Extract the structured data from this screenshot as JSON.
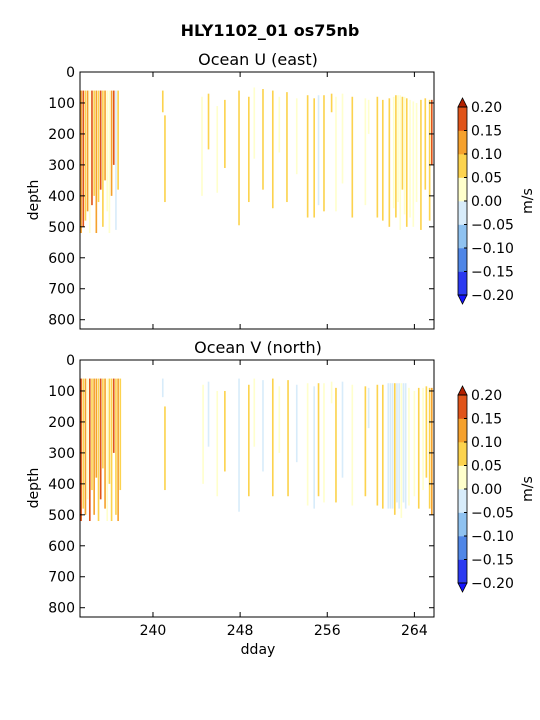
{
  "figure_title": "HLY1102_01 os75nb",
  "colorbar": {
    "label": "m/s",
    "levels": [
      -0.2,
      -0.15,
      -0.1,
      -0.05,
      0.0,
      0.05,
      0.1,
      0.15,
      0.2
    ],
    "tick_labels": [
      "−0.20",
      "−0.15",
      "−0.10",
      "−0.05",
      "0.00",
      "0.05",
      "0.10",
      "0.15",
      "0.20"
    ],
    "colors": [
      "#2b3af0",
      "#4f86e6",
      "#8fc2f0",
      "#d8ecfa",
      "#ffffcc",
      "#fcd34e",
      "#f5a12d",
      "#e0541a"
    ],
    "under_color": "#1414ff",
    "over_color": "#b22000",
    "extend": "both"
  },
  "chart_data": [
    {
      "type": "heatmap",
      "title": "Ocean U (east)",
      "xlabel": "",
      "ylabel": "depth",
      "xlim": [
        233.3,
        265.8
      ],
      "ylim": [
        830,
        0
      ],
      "yticks": [
        0,
        100,
        200,
        300,
        400,
        500,
        600,
        700,
        800
      ],
      "xticks": [
        240,
        248,
        256,
        264
      ],
      "x_tick_labels_shown": false,
      "segments": [
        {
          "x": 233.4,
          "top": 60,
          "bottom": 520,
          "v": 0.14
        },
        {
          "x": 233.6,
          "top": 60,
          "bottom": 500,
          "v": 0.18
        },
        {
          "x": 233.8,
          "top": 60,
          "bottom": 480,
          "v": 0.07
        },
        {
          "x": 234.0,
          "top": 60,
          "bottom": 450,
          "v": 0.12
        },
        {
          "x": 234.2,
          "top": 60,
          "bottom": 520,
          "v": 0.04
        },
        {
          "x": 234.4,
          "top": 60,
          "bottom": 430,
          "v": 0.16
        },
        {
          "x": 234.6,
          "top": 60,
          "bottom": 400,
          "v": 0.08
        },
        {
          "x": 234.8,
          "top": 60,
          "bottom": 520,
          "v": 0.11
        },
        {
          "x": 235.0,
          "top": 60,
          "bottom": 420,
          "v": 0.06
        },
        {
          "x": 235.2,
          "top": 60,
          "bottom": 380,
          "v": 0.19
        },
        {
          "x": 235.4,
          "top": 60,
          "bottom": 500,
          "v": 0.09
        },
        {
          "x": 235.6,
          "top": 60,
          "bottom": 350,
          "v": 0.13
        },
        {
          "x": 235.8,
          "top": 60,
          "bottom": 450,
          "v": 0.05
        },
        {
          "x": 236.0,
          "top": 60,
          "bottom": 520,
          "v": 0.03
        },
        {
          "x": 236.2,
          "top": 60,
          "bottom": 400,
          "v": 0.11
        },
        {
          "x": 236.4,
          "top": 60,
          "bottom": 300,
          "v": 0.17
        },
        {
          "x": 236.6,
          "top": 60,
          "bottom": 510,
          "v": -0.03
        },
        {
          "x": 236.8,
          "top": 60,
          "bottom": 380,
          "v": 0.08
        },
        {
          "x": 240.9,
          "top": 60,
          "bottom": 130,
          "v": 0.07
        },
        {
          "x": 241.1,
          "top": 140,
          "bottom": 420,
          "v": 0.06
        },
        {
          "x": 244.5,
          "top": 80,
          "bottom": 400,
          "v": 0.05
        },
        {
          "x": 245.1,
          "top": 70,
          "bottom": 250,
          "v": 0.07
        },
        {
          "x": 245.9,
          "top": 110,
          "bottom": 390,
          "v": 0.03
        },
        {
          "x": 246.6,
          "top": 90,
          "bottom": 310,
          "v": 0.06
        },
        {
          "x": 247.9,
          "top": 60,
          "bottom": 495,
          "v": 0.08
        },
        {
          "x": 248.8,
          "top": 80,
          "bottom": 420,
          "v": 0.06
        },
        {
          "x": 249.3,
          "top": 50,
          "bottom": 280,
          "v": 0.03
        },
        {
          "x": 250.1,
          "top": 55,
          "bottom": 380,
          "v": 0.07
        },
        {
          "x": 251.0,
          "top": 60,
          "bottom": 440,
          "v": 0.06
        },
        {
          "x": 251.6,
          "top": 80,
          "bottom": 260,
          "v": 0.05
        },
        {
          "x": 252.3,
          "top": 65,
          "bottom": 420,
          "v": 0.08
        },
        {
          "x": 253.2,
          "top": 85,
          "bottom": 330,
          "v": 0.04
        },
        {
          "x": 254.2,
          "top": 75,
          "bottom": 470,
          "v": 0.06
        },
        {
          "x": 254.8,
          "top": 85,
          "bottom": 470,
          "v": 0.07
        },
        {
          "x": 255.2,
          "top": 75,
          "bottom": 430,
          "v": -0.03
        },
        {
          "x": 255.7,
          "top": 75,
          "bottom": 450,
          "v": 0.06
        },
        {
          "x": 256.4,
          "top": 70,
          "bottom": 130,
          "v": 0.07
        },
        {
          "x": 256.8,
          "top": 80,
          "bottom": 450,
          "v": 0.05
        },
        {
          "x": 257.4,
          "top": 70,
          "bottom": 360,
          "v": 0.04
        },
        {
          "x": 258.3,
          "top": 80,
          "bottom": 470,
          "v": 0.06
        },
        {
          "x": 259.5,
          "top": 85,
          "bottom": 430,
          "v": 0.05
        },
        {
          "x": 259.8,
          "top": 90,
          "bottom": 200,
          "v": 0.04
        },
        {
          "x": 260.6,
          "top": 80,
          "bottom": 470,
          "v": 0.07
        },
        {
          "x": 261.1,
          "top": 90,
          "bottom": 480,
          "v": 0.06
        },
        {
          "x": 261.7,
          "top": 85,
          "bottom": 500,
          "v": 0.08
        },
        {
          "x": 262.1,
          "top": 80,
          "bottom": 440,
          "v": 0.04
        },
        {
          "x": 262.3,
          "top": 75,
          "bottom": 470,
          "v": 0.06
        },
        {
          "x": 262.5,
          "top": 75,
          "bottom": 420,
          "v": 0.03
        },
        {
          "x": 262.7,
          "top": 75,
          "bottom": 510,
          "v": 0.05
        },
        {
          "x": 262.9,
          "top": 80,
          "bottom": 380,
          "v": 0.07
        },
        {
          "x": 263.1,
          "top": 80,
          "bottom": 460,
          "v": 0.04
        },
        {
          "x": 263.3,
          "top": 85,
          "bottom": 500,
          "v": 0.06
        },
        {
          "x": 263.6,
          "top": 90,
          "bottom": 470,
          "v": 0.03
        },
        {
          "x": 263.9,
          "top": 95,
          "bottom": 500,
          "v": 0.05
        },
        {
          "x": 264.2,
          "top": 100,
          "bottom": 420,
          "v": 0.04
        },
        {
          "x": 264.6,
          "top": 90,
          "bottom": 510,
          "v": 0.06
        },
        {
          "x": 265.0,
          "top": 85,
          "bottom": 380,
          "v": 0.08
        },
        {
          "x": 265.4,
          "top": 90,
          "bottom": 480,
          "v": 0.07
        },
        {
          "x": 265.6,
          "top": 90,
          "bottom": 300,
          "v": 0.16
        }
      ]
    },
    {
      "type": "heatmap",
      "title": "Ocean V (north)",
      "xlabel": "dday",
      "ylabel": "depth",
      "xlim": [
        233.3,
        265.8
      ],
      "ylim": [
        830,
        0
      ],
      "yticks": [
        0,
        100,
        200,
        300,
        400,
        500,
        600,
        700,
        800
      ],
      "xticks": [
        240,
        248,
        256,
        264
      ],
      "x_tick_labels_shown": true,
      "x_tick_labels": [
        "240",
        "248",
        "256",
        "264"
      ],
      "segments": [
        {
          "x": 233.4,
          "top": 60,
          "bottom": 520,
          "v": 0.16
        },
        {
          "x": 233.6,
          "top": 60,
          "bottom": 480,
          "v": 0.09
        },
        {
          "x": 233.8,
          "top": 60,
          "bottom": 500,
          "v": 0.12
        },
        {
          "x": 234.0,
          "top": 60,
          "bottom": 450,
          "v": 0.05
        },
        {
          "x": 234.2,
          "top": 60,
          "bottom": 520,
          "v": 0.18
        },
        {
          "x": 234.4,
          "top": 60,
          "bottom": 420,
          "v": 0.07
        },
        {
          "x": 234.6,
          "top": 60,
          "bottom": 500,
          "v": 0.11
        },
        {
          "x": 234.8,
          "top": 60,
          "bottom": 380,
          "v": 0.14
        },
        {
          "x": 235.0,
          "top": 60,
          "bottom": 520,
          "v": 0.06
        },
        {
          "x": 235.2,
          "top": 60,
          "bottom": 450,
          "v": 0.19
        },
        {
          "x": 235.4,
          "top": 60,
          "bottom": 350,
          "v": 0.08
        },
        {
          "x": 235.6,
          "top": 60,
          "bottom": 480,
          "v": 0.13
        },
        {
          "x": 235.8,
          "top": 60,
          "bottom": 520,
          "v": 0.04
        },
        {
          "x": 236.0,
          "top": 60,
          "bottom": 400,
          "v": 0.1
        },
        {
          "x": 236.2,
          "top": 60,
          "bottom": 520,
          "v": 0.07
        },
        {
          "x": 236.4,
          "top": 60,
          "bottom": 300,
          "v": 0.16
        },
        {
          "x": 236.6,
          "top": 60,
          "bottom": 500,
          "v": 0.09
        },
        {
          "x": 236.8,
          "top": 60,
          "bottom": 520,
          "v": 0.12
        },
        {
          "x": 237.0,
          "top": 60,
          "bottom": 420,
          "v": 0.06
        },
        {
          "x": 240.9,
          "top": 60,
          "bottom": 120,
          "v": -0.03
        },
        {
          "x": 241.1,
          "top": 150,
          "bottom": 420,
          "v": 0.06
        },
        {
          "x": 244.6,
          "top": 80,
          "bottom": 400,
          "v": 0.05
        },
        {
          "x": 245.1,
          "top": 70,
          "bottom": 280,
          "v": -0.03
        },
        {
          "x": 245.9,
          "top": 100,
          "bottom": 440,
          "v": 0.04
        },
        {
          "x": 246.6,
          "top": 100,
          "bottom": 360,
          "v": 0.06
        },
        {
          "x": 247.9,
          "top": 60,
          "bottom": 490,
          "v": -0.03
        },
        {
          "x": 248.8,
          "top": 80,
          "bottom": 440,
          "v": 0.07
        },
        {
          "x": 249.3,
          "top": 60,
          "bottom": 280,
          "v": 0.05
        },
        {
          "x": 250.1,
          "top": 65,
          "bottom": 360,
          "v": -0.03
        },
        {
          "x": 251.0,
          "top": 60,
          "bottom": 440,
          "v": 0.06
        },
        {
          "x": 251.6,
          "top": 85,
          "bottom": 300,
          "v": 0.04
        },
        {
          "x": 252.4,
          "top": 65,
          "bottom": 440,
          "v": 0.07
        },
        {
          "x": 253.2,
          "top": 80,
          "bottom": 330,
          "v": -0.03
        },
        {
          "x": 254.2,
          "top": 75,
          "bottom": 470,
          "v": 0.05
        },
        {
          "x": 254.8,
          "top": 85,
          "bottom": 480,
          "v": -0.03
        },
        {
          "x": 255.2,
          "top": 75,
          "bottom": 440,
          "v": 0.06
        },
        {
          "x": 255.7,
          "top": 75,
          "bottom": 460,
          "v": 0.05
        },
        {
          "x": 256.4,
          "top": 70,
          "bottom": 140,
          "v": 0.04
        },
        {
          "x": 256.8,
          "top": 90,
          "bottom": 460,
          "v": 0.06
        },
        {
          "x": 257.4,
          "top": 70,
          "bottom": 380,
          "v": -0.03
        },
        {
          "x": 258.3,
          "top": 80,
          "bottom": 470,
          "v": 0.05
        },
        {
          "x": 259.5,
          "top": 85,
          "bottom": 440,
          "v": 0.06
        },
        {
          "x": 259.8,
          "top": 90,
          "bottom": 220,
          "v": -0.03
        },
        {
          "x": 260.6,
          "top": 80,
          "bottom": 470,
          "v": 0.07
        },
        {
          "x": 261.1,
          "top": 80,
          "bottom": 480,
          "v": 0.06
        },
        {
          "x": 261.6,
          "top": 75,
          "bottom": 480,
          "v": -0.03
        },
        {
          "x": 261.8,
          "top": 75,
          "bottom": 480,
          "v": -0.03
        },
        {
          "x": 262.0,
          "top": 75,
          "bottom": 480,
          "v": -0.03
        },
        {
          "x": 262.2,
          "top": 75,
          "bottom": 500,
          "v": 0.06
        },
        {
          "x": 262.4,
          "top": 75,
          "bottom": 460,
          "v": -0.03
        },
        {
          "x": 262.6,
          "top": 75,
          "bottom": 480,
          "v": -0.03
        },
        {
          "x": 262.8,
          "top": 75,
          "bottom": 510,
          "v": 0.04
        },
        {
          "x": 263.0,
          "top": 75,
          "bottom": 460,
          "v": -0.03
        },
        {
          "x": 263.2,
          "top": 75,
          "bottom": 480,
          "v": -0.03
        },
        {
          "x": 263.5,
          "top": 90,
          "bottom": 470,
          "v": 0.05
        },
        {
          "x": 264.0,
          "top": 100,
          "bottom": 440,
          "v": 0.03
        },
        {
          "x": 264.4,
          "top": 90,
          "bottom": 480,
          "v": 0.06
        },
        {
          "x": 264.8,
          "top": 90,
          "bottom": 420,
          "v": 0.05
        },
        {
          "x": 265.1,
          "top": 85,
          "bottom": 380,
          "v": 0.08
        },
        {
          "x": 265.4,
          "top": 90,
          "bottom": 480,
          "v": 0.07
        },
        {
          "x": 265.6,
          "top": 90,
          "bottom": 500,
          "v": 0.15
        }
      ]
    }
  ]
}
